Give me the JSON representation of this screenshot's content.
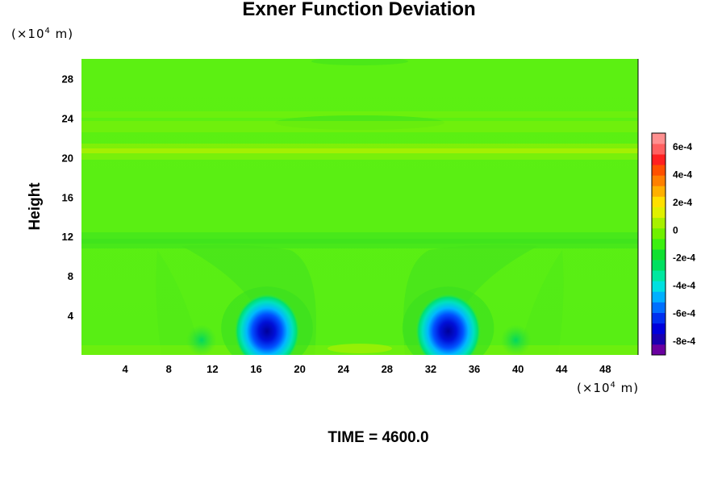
{
  "chart_data": {
    "type": "heatmap",
    "title": "Exner Function Deviation",
    "ylabel": "Height",
    "x_unit": {
      "prefix": "(×10",
      "exp": "4",
      "suffix": " m)"
    },
    "y_unit": {
      "prefix": "(×10",
      "exp": "4",
      "suffix": " m)"
    },
    "footer": "TIME = 4600.0",
    "xlim": [
      0,
      51
    ],
    "ylim": [
      0,
      30
    ],
    "x_ticks": [
      "4",
      "8",
      "12",
      "16",
      "20",
      "24",
      "28",
      "32",
      "36",
      "40",
      "44",
      "48"
    ],
    "y_ticks": [
      "4",
      "8",
      "12",
      "16",
      "20",
      "24",
      "28"
    ],
    "colorbar": {
      "range": [
        -0.0009,
        0.0007
      ],
      "tick_values": [
        0.0006,
        0.0004,
        0.0002,
        0,
        -0.0002,
        -0.0004,
        -0.0006,
        -0.0008
      ],
      "tick_labels": [
        "6e-4",
        "4e-4",
        "2e-4",
        "0",
        "-2e-4",
        "-4e-4",
        "-6e-4",
        "-8e-4"
      ],
      "colors": [
        "#6a00a0",
        "#1a00b0",
        "#0000dc",
        "#0030f0",
        "#0070ff",
        "#00b0ff",
        "#00e0e0",
        "#00e8a0",
        "#00e060",
        "#10e030",
        "#3cf010",
        "#70f000",
        "#a8f000",
        "#e0f000",
        "#ffe000",
        "#ffb000",
        "#ff8000",
        "#ff5000",
        "#ff2020",
        "#ff6060",
        "#ff9090"
      ]
    },
    "background_value": 0,
    "features": [
      {
        "name": "low-left",
        "x": 17.0,
        "y": 2.4,
        "value": -0.0009
      },
      {
        "name": "low-right",
        "x": 33.6,
        "y": 2.4,
        "value": -0.0009
      },
      {
        "name": "minor-low-left",
        "x": 11.0,
        "y": 1.5,
        "value": -0.0002
      },
      {
        "name": "minor-low-right",
        "x": 39.8,
        "y": 1.5,
        "value": -0.0002
      },
      {
        "name": "band-upper",
        "x": 25.5,
        "y": 20.5,
        "value": 0.00015
      },
      {
        "name": "band-mid",
        "x": 25.5,
        "y": 11.6,
        "value": -0.0001
      }
    ]
  }
}
